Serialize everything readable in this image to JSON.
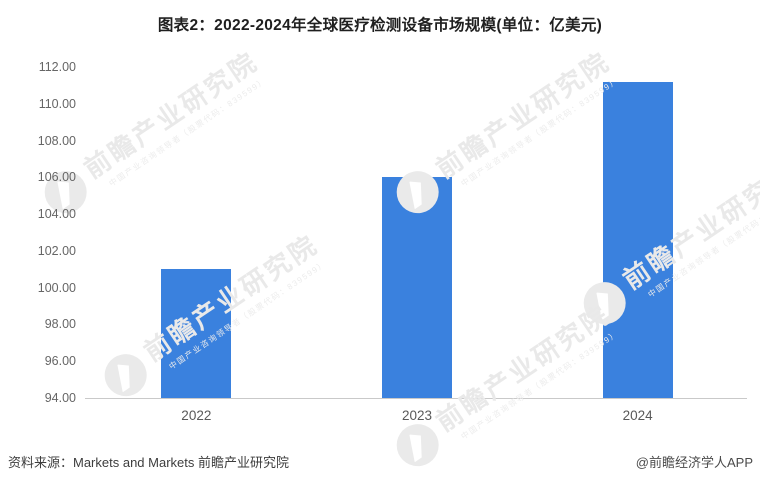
{
  "title": "图表2：2022-2024年全球医疗检测设备市场规模(单位：亿美元)",
  "chart_data": {
    "type": "bar",
    "categories": [
      "2022",
      "2023",
      "2024"
    ],
    "values": [
      101.0,
      106.0,
      111.2
    ],
    "title": "图表2：2022-2024年全球医疗检测设备市场规模(单位：亿美元)",
    "xlabel": "",
    "ylabel": "",
    "ylim": [
      94,
      112
    ],
    "ytick_step": 2,
    "ytick_decimals": 2,
    "grid": false,
    "legend": false,
    "bar_color": "#3a81de"
  },
  "colors": {
    "bar": "#3a81de",
    "axis_line": "#c9c9c9",
    "tick_text": "#666666",
    "watermark": "#e9e9e9"
  },
  "footer": {
    "source": "资料来源：Markets and Markets 前瞻产业研究院",
    "credit": "@前瞻经济学人APP"
  },
  "watermark": {
    "logo": "qianzhan-logo",
    "text": "前瞻产业研究院",
    "subtext": "中国产业咨询领导者（股票代码：839599）"
  }
}
